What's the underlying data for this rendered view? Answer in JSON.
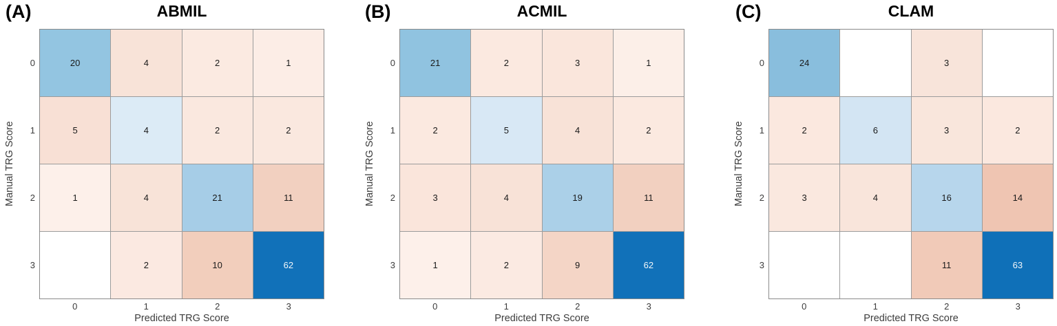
{
  "figure": {
    "background": "#ffffff",
    "gridline_color": "#9b9b9b",
    "border_color": "#8a8a8a",
    "tick_color": "#3c3c3c",
    "label_color": "#3c3c3c",
    "value_text_dark": "#1a1a1a",
    "value_text_light": "#f2f6f9",
    "diag_dark_blue": "#1171b9"
  },
  "chart_data": [
    {
      "type": "heatmap",
      "panel_letter": "(A)",
      "title": "ABMIL",
      "xlabel": "Predicted TRG Score",
      "ylabel": "Manual TRG Score",
      "x_categories": [
        "0",
        "1",
        "2",
        "3"
      ],
      "y_categories": [
        "0",
        "1",
        "2",
        "3"
      ],
      "values": [
        [
          20,
          4,
          2,
          1
        ],
        [
          5,
          4,
          2,
          2
        ],
        [
          1,
          4,
          21,
          11
        ],
        [
          0,
          2,
          10,
          62
        ]
      ],
      "display": [
        [
          "20",
          "4",
          "2",
          "1"
        ],
        [
          "5",
          "4",
          "2",
          "2"
        ],
        [
          "1",
          "4",
          "21",
          "11"
        ],
        [
          "",
          "2",
          "10",
          "62"
        ]
      ],
      "cell_colors": [
        [
          "#93c5e1",
          "#f8e3d8",
          "#fbeae1",
          "#fcede6"
        ],
        [
          "#f8e0d5",
          "#dcebf6",
          "#fae8df",
          "#fae8df"
        ],
        [
          "#fdf0ea",
          "#f8e3d8",
          "#a6cde7",
          "#f2d0c0"
        ],
        [
          "#ffffff",
          "#fbe9e1",
          "#f2cebc",
          "#1171b9"
        ]
      ],
      "text_colors": [
        [
          "#1a1a1a",
          "#1a1a1a",
          "#1a1a1a",
          "#1a1a1a"
        ],
        [
          "#1a1a1a",
          "#1a1a1a",
          "#1a1a1a",
          "#1a1a1a"
        ],
        [
          "#1a1a1a",
          "#1a1a1a",
          "#1a1a1a",
          "#1a1a1a"
        ],
        [
          "#1a1a1a",
          "#1a1a1a",
          "#1a1a1a",
          "#f2f6f9"
        ]
      ]
    },
    {
      "type": "heatmap",
      "panel_letter": "(B)",
      "title": "ACMIL",
      "xlabel": "Predicted TRG Score",
      "ylabel": "Manual TRG Score",
      "x_categories": [
        "0",
        "1",
        "2",
        "3"
      ],
      "y_categories": [
        "0",
        "1",
        "2",
        "3"
      ],
      "values": [
        [
          21,
          2,
          3,
          1
        ],
        [
          2,
          5,
          4,
          2
        ],
        [
          3,
          4,
          19,
          11
        ],
        [
          1,
          2,
          9,
          62
        ]
      ],
      "display": [
        [
          "21",
          "2",
          "3",
          "1"
        ],
        [
          "2",
          "5",
          "4",
          "2"
        ],
        [
          "3",
          "4",
          "19",
          "11"
        ],
        [
          "1",
          "2",
          "9",
          "62"
        ]
      ],
      "cell_colors": [
        [
          "#90c3e0",
          "#fbe9e0",
          "#fae6dc",
          "#fcefe8"
        ],
        [
          "#fbe9e0",
          "#d8e8f5",
          "#f8e2d7",
          "#fbe9e0"
        ],
        [
          "#fae5db",
          "#f8e2d7",
          "#abd0e8",
          "#f2d0c0"
        ],
        [
          "#fdf0ea",
          "#fbeae2",
          "#f4d5c6",
          "#1171b9"
        ]
      ],
      "text_colors": [
        [
          "#1a1a1a",
          "#1a1a1a",
          "#1a1a1a",
          "#1a1a1a"
        ],
        [
          "#1a1a1a",
          "#1a1a1a",
          "#1a1a1a",
          "#1a1a1a"
        ],
        [
          "#1a1a1a",
          "#1a1a1a",
          "#1a1a1a",
          "#1a1a1a"
        ],
        [
          "#1a1a1a",
          "#1a1a1a",
          "#1a1a1a",
          "#f2f6f9"
        ]
      ]
    },
    {
      "type": "heatmap",
      "panel_letter": "(C)",
      "title": "CLAM",
      "xlabel": "Predicted TRG Score",
      "ylabel": "Manual TRG Score",
      "x_categories": [
        "0",
        "1",
        "2",
        "3"
      ],
      "y_categories": [
        "0",
        "1",
        "2",
        "3"
      ],
      "values": [
        [
          24,
          0,
          3,
          0
        ],
        [
          2,
          6,
          3,
          2
        ],
        [
          3,
          4,
          16,
          14
        ],
        [
          0,
          0,
          11,
          63
        ]
      ],
      "display": [
        [
          "24",
          "",
          "3",
          ""
        ],
        [
          "2",
          "6",
          "3",
          "2"
        ],
        [
          "3",
          "4",
          "16",
          "14"
        ],
        [
          "",
          "",
          "11",
          "63"
        ]
      ],
      "cell_colors": [
        [
          "#89bedd",
          "#ffffff",
          "#f8e4da",
          "#ffffff"
        ],
        [
          "#fbe8df",
          "#d3e5f3",
          "#f9e6dc",
          "#fbe8df"
        ],
        [
          "#fae8df",
          "#f9e5db",
          "#b7d6ec",
          "#efc5b2"
        ],
        [
          "#ffffff",
          "#ffffff",
          "#f1cab8",
          "#0f70b8"
        ]
      ],
      "text_colors": [
        [
          "#1a1a1a",
          "#1a1a1a",
          "#1a1a1a",
          "#1a1a1a"
        ],
        [
          "#1a1a1a",
          "#1a1a1a",
          "#1a1a1a",
          "#1a1a1a"
        ],
        [
          "#1a1a1a",
          "#1a1a1a",
          "#1a1a1a",
          "#1a1a1a"
        ],
        [
          "#1a1a1a",
          "#1a1a1a",
          "#1a1a1a",
          "#f2f6f9"
        ]
      ]
    }
  ]
}
